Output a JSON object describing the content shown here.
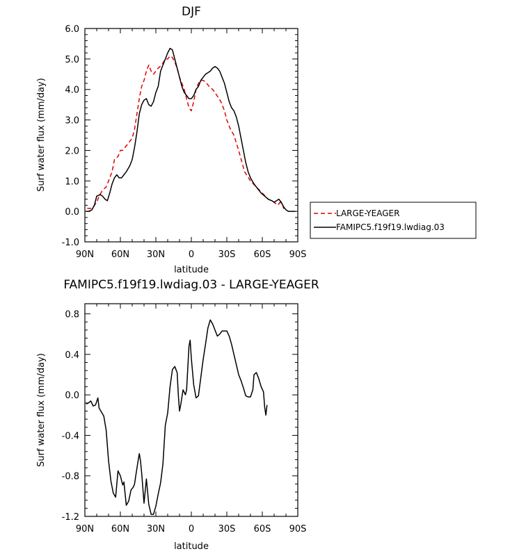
{
  "chart_data": [
    {
      "type": "line",
      "title": "DJF",
      "xlabel": "latitude",
      "ylabel": "Surf water flux (mm/day)",
      "xlim": [
        90,
        -90
      ],
      "ylim": [
        -1.0,
        6.0
      ],
      "xticks": [
        90,
        60,
        30,
        0,
        -30,
        -60,
        -90
      ],
      "xtick_labels": [
        "90N",
        "60N",
        "30N",
        "0",
        "30S",
        "60S",
        "90S"
      ],
      "yticks": [
        -1.0,
        0.0,
        1.0,
        2.0,
        3.0,
        4.0,
        5.0,
        6.0
      ],
      "ytick_labels": [
        "-1.0",
        "0.0",
        "1.0",
        "2.0",
        "3.0",
        "4.0",
        "5.0",
        "6.0"
      ],
      "legend_position": "right",
      "series": [
        {
          "name": "LARGE-YEAGER",
          "color": "#e00000",
          "dash": "dashed",
          "points": [
            [
              88,
              0.1
            ],
            [
              84,
              0.1
            ],
            [
              82,
              0.2
            ],
            [
              80,
              0.3
            ],
            [
              78,
              0.5
            ],
            [
              75,
              0.7
            ],
            [
              72,
              0.8
            ],
            [
              70,
              1.0
            ],
            [
              67,
              1.3
            ],
            [
              65,
              1.7
            ],
            [
              62,
              1.8
            ],
            [
              60,
              2.0
            ],
            [
              58,
              2.0
            ],
            [
              56,
              2.1
            ],
            [
              54,
              2.2
            ],
            [
              52,
              2.3
            ],
            [
              50,
              2.4
            ],
            [
              48,
              2.7
            ],
            [
              46,
              3.2
            ],
            [
              44,
              3.7
            ],
            [
              42,
              4.1
            ],
            [
              40,
              4.3
            ],
            [
              38,
              4.6
            ],
            [
              36,
              4.8
            ],
            [
              34,
              4.6
            ],
            [
              32,
              4.5
            ],
            [
              30,
              4.6
            ],
            [
              28,
              4.7
            ],
            [
              25,
              4.8
            ],
            [
              22,
              5.0
            ],
            [
              20,
              5.0
            ],
            [
              18,
              5.1
            ],
            [
              16,
              5.05
            ],
            [
              14,
              4.9
            ],
            [
              12,
              4.7
            ],
            [
              10,
              4.4
            ],
            [
              8,
              4.2
            ],
            [
              6,
              4.0
            ],
            [
              4,
              3.7
            ],
            [
              2,
              3.4
            ],
            [
              0,
              3.3
            ],
            [
              -2,
              3.6
            ],
            [
              -4,
              4.0
            ],
            [
              -6,
              4.2
            ],
            [
              -8,
              4.3
            ],
            [
              -10,
              4.3
            ],
            [
              -12,
              4.25
            ],
            [
              -15,
              4.1
            ],
            [
              -18,
              4.0
            ],
            [
              -20,
              3.9
            ],
            [
              -25,
              3.6
            ],
            [
              -28,
              3.3
            ],
            [
              -30,
              3.0
            ],
            [
              -33,
              2.7
            ],
            [
              -36,
              2.5
            ],
            [
              -40,
              2.0
            ],
            [
              -45,
              1.3
            ],
            [
              -50,
              1.0
            ],
            [
              -55,
              0.8
            ],
            [
              -60,
              0.6
            ],
            [
              -65,
              0.4
            ],
            [
              -70,
              0.3
            ],
            [
              -73,
              0.2
            ],
            [
              -75,
              0.3
            ],
            [
              -77,
              0.25
            ],
            [
              -78,
              0.1
            ],
            [
              -79,
              0.05
            ]
          ]
        },
        {
          "name": "FAMIPC5.f19f19.lwdiag.03",
          "color": "#000000",
          "dash": "solid",
          "points": [
            [
              89,
              0.0
            ],
            [
              87,
              0.0
            ],
            [
              84,
              0.05
            ],
            [
              82,
              0.2
            ],
            [
              80,
              0.5
            ],
            [
              77,
              0.55
            ],
            [
              75,
              0.5
            ],
            [
              73,
              0.4
            ],
            [
              71,
              0.35
            ],
            [
              69,
              0.6
            ],
            [
              67,
              0.9
            ],
            [
              65,
              1.1
            ],
            [
              63,
              1.2
            ],
            [
              61,
              1.1
            ],
            [
              59,
              1.1
            ],
            [
              57,
              1.2
            ],
            [
              55,
              1.3
            ],
            [
              52,
              1.5
            ],
            [
              50,
              1.7
            ],
            [
              48,
              2.1
            ],
            [
              46,
              2.6
            ],
            [
              44,
              3.2
            ],
            [
              42,
              3.5
            ],
            [
              40,
              3.65
            ],
            [
              38,
              3.7
            ],
            [
              36,
              3.5
            ],
            [
              34,
              3.45
            ],
            [
              32,
              3.6
            ],
            [
              30,
              3.9
            ],
            [
              28,
              4.1
            ],
            [
              26,
              4.6
            ],
            [
              24,
              4.8
            ],
            [
              22,
              5.0
            ],
            [
              20,
              5.2
            ],
            [
              18,
              5.35
            ],
            [
              16,
              5.3
            ],
            [
              14,
              5.0
            ],
            [
              12,
              4.7
            ],
            [
              10,
              4.4
            ],
            [
              8,
              4.1
            ],
            [
              6,
              3.9
            ],
            [
              4,
              3.8
            ],
            [
              2,
              3.7
            ],
            [
              0,
              3.7
            ],
            [
              -2,
              3.8
            ],
            [
              -4,
              4.0
            ],
            [
              -6,
              4.1
            ],
            [
              -8,
              4.3
            ],
            [
              -10,
              4.4
            ],
            [
              -12,
              4.5
            ],
            [
              -14,
              4.55
            ],
            [
              -16,
              4.6
            ],
            [
              -18,
              4.7
            ],
            [
              -20,
              4.75
            ],
            [
              -22,
              4.7
            ],
            [
              -24,
              4.6
            ],
            [
              -26,
              4.4
            ],
            [
              -28,
              4.2
            ],
            [
              -30,
              3.9
            ],
            [
              -32,
              3.6
            ],
            [
              -34,
              3.4
            ],
            [
              -36,
              3.3
            ],
            [
              -38,
              3.1
            ],
            [
              -40,
              2.8
            ],
            [
              -42,
              2.4
            ],
            [
              -44,
              2.0
            ],
            [
              -46,
              1.6
            ],
            [
              -48,
              1.3
            ],
            [
              -50,
              1.1
            ],
            [
              -53,
              0.9
            ],
            [
              -56,
              0.75
            ],
            [
              -59,
              0.6
            ],
            [
              -62,
              0.5
            ],
            [
              -65,
              0.4
            ],
            [
              -68,
              0.35
            ],
            [
              -70,
              0.3
            ],
            [
              -72,
              0.35
            ],
            [
              -74,
              0.4
            ],
            [
              -76,
              0.3
            ],
            [
              -78,
              0.15
            ],
            [
              -80,
              0.05
            ],
            [
              -82,
              0.0
            ],
            [
              -85,
              0.0
            ],
            [
              -88,
              0.0
            ]
          ]
        }
      ]
    },
    {
      "type": "line",
      "title": "FAMIPC5.f19f19.lwdiag.03 - LARGE-YEAGER",
      "xlabel": "latitude",
      "ylabel": "Surf water flux (mm/day)",
      "xlim": [
        90,
        -90
      ],
      "ylim": [
        -1.2,
        0.9
      ],
      "xticks": [
        90,
        60,
        30,
        0,
        -30,
        -60,
        -90
      ],
      "xtick_labels": [
        "90N",
        "60N",
        "30N",
        "0",
        "30S",
        "60S",
        "90S"
      ],
      "yticks": [
        -1.2,
        -0.8,
        -0.4,
        0.0,
        0.4,
        0.8
      ],
      "ytick_labels": [
        "-1.2",
        "-0.8",
        "-0.4",
        "0.0",
        "0.4",
        "0.8"
      ],
      "series": [
        {
          "color": "#000000",
          "dash": "solid",
          "points": [
            [
              89,
              -0.09
            ],
            [
              87,
              -0.08
            ],
            [
              85,
              -0.06
            ],
            [
              83,
              -0.11
            ],
            [
              81,
              -0.1
            ],
            [
              79,
              -0.03
            ],
            [
              78,
              -0.13
            ],
            [
              76,
              -0.17
            ],
            [
              74,
              -0.21
            ],
            [
              72,
              -0.35
            ],
            [
              70,
              -0.65
            ],
            [
              68,
              -0.85
            ],
            [
              66,
              -0.97
            ],
            [
              64,
              -1.01
            ],
            [
              62,
              -0.75
            ],
            [
              60,
              -0.8
            ],
            [
              58,
              -0.89
            ],
            [
              57,
              -0.86
            ],
            [
              55,
              -1.09
            ],
            [
              53,
              -1.05
            ],
            [
              51,
              -0.94
            ],
            [
              49,
              -0.91
            ],
            [
              48,
              -0.88
            ],
            [
              47,
              -0.8
            ],
            [
              45,
              -0.65
            ],
            [
              44,
              -0.58
            ],
            [
              43,
              -0.65
            ],
            [
              42,
              -0.77
            ],
            [
              40,
              -1.07
            ],
            [
              38,
              -0.83
            ],
            [
              36,
              -1.08
            ],
            [
              34,
              -1.18
            ],
            [
              32,
              -1.18
            ],
            [
              30,
              -1.1
            ],
            [
              28,
              -0.98
            ],
            [
              26,
              -0.87
            ],
            [
              24,
              -0.68
            ],
            [
              22,
              -0.3
            ],
            [
              20,
              -0.18
            ],
            [
              18,
              0.08
            ],
            [
              16,
              0.25
            ],
            [
              14,
              0.28
            ],
            [
              12,
              0.22
            ],
            [
              11,
              0.0
            ],
            [
              10,
              -0.16
            ],
            [
              9,
              -0.1
            ],
            [
              7,
              0.05
            ],
            [
              5,
              0.0
            ],
            [
              4,
              0.05
            ],
            [
              2,
              0.48
            ],
            [
              1,
              0.54
            ],
            [
              0,
              0.36
            ],
            [
              -2,
              0.1
            ],
            [
              -4,
              -0.03
            ],
            [
              -6,
              -0.01
            ],
            [
              -8,
              0.17
            ],
            [
              -10,
              0.35
            ],
            [
              -12,
              0.5
            ],
            [
              -14,
              0.66
            ],
            [
              -16,
              0.74
            ],
            [
              -18,
              0.7
            ],
            [
              -20,
              0.64
            ],
            [
              -22,
              0.58
            ],
            [
              -24,
              0.6
            ],
            [
              -26,
              0.63
            ],
            [
              -28,
              0.63
            ],
            [
              -30,
              0.63
            ],
            [
              -32,
              0.58
            ],
            [
              -34,
              0.5
            ],
            [
              -36,
              0.4
            ],
            [
              -38,
              0.3
            ],
            [
              -40,
              0.2
            ],
            [
              -42,
              0.14
            ],
            [
              -44,
              0.07
            ],
            [
              -46,
              -0.01
            ],
            [
              -48,
              -0.02
            ],
            [
              -50,
              -0.02
            ],
            [
              -52,
              0.05
            ],
            [
              -53,
              0.2
            ],
            [
              -55,
              0.22
            ],
            [
              -57,
              0.16
            ],
            [
              -59,
              0.08
            ],
            [
              -61,
              0.03
            ],
            [
              -62,
              -0.12
            ],
            [
              -63,
              -0.2
            ],
            [
              -64,
              -0.1
            ]
          ]
        }
      ]
    }
  ]
}
